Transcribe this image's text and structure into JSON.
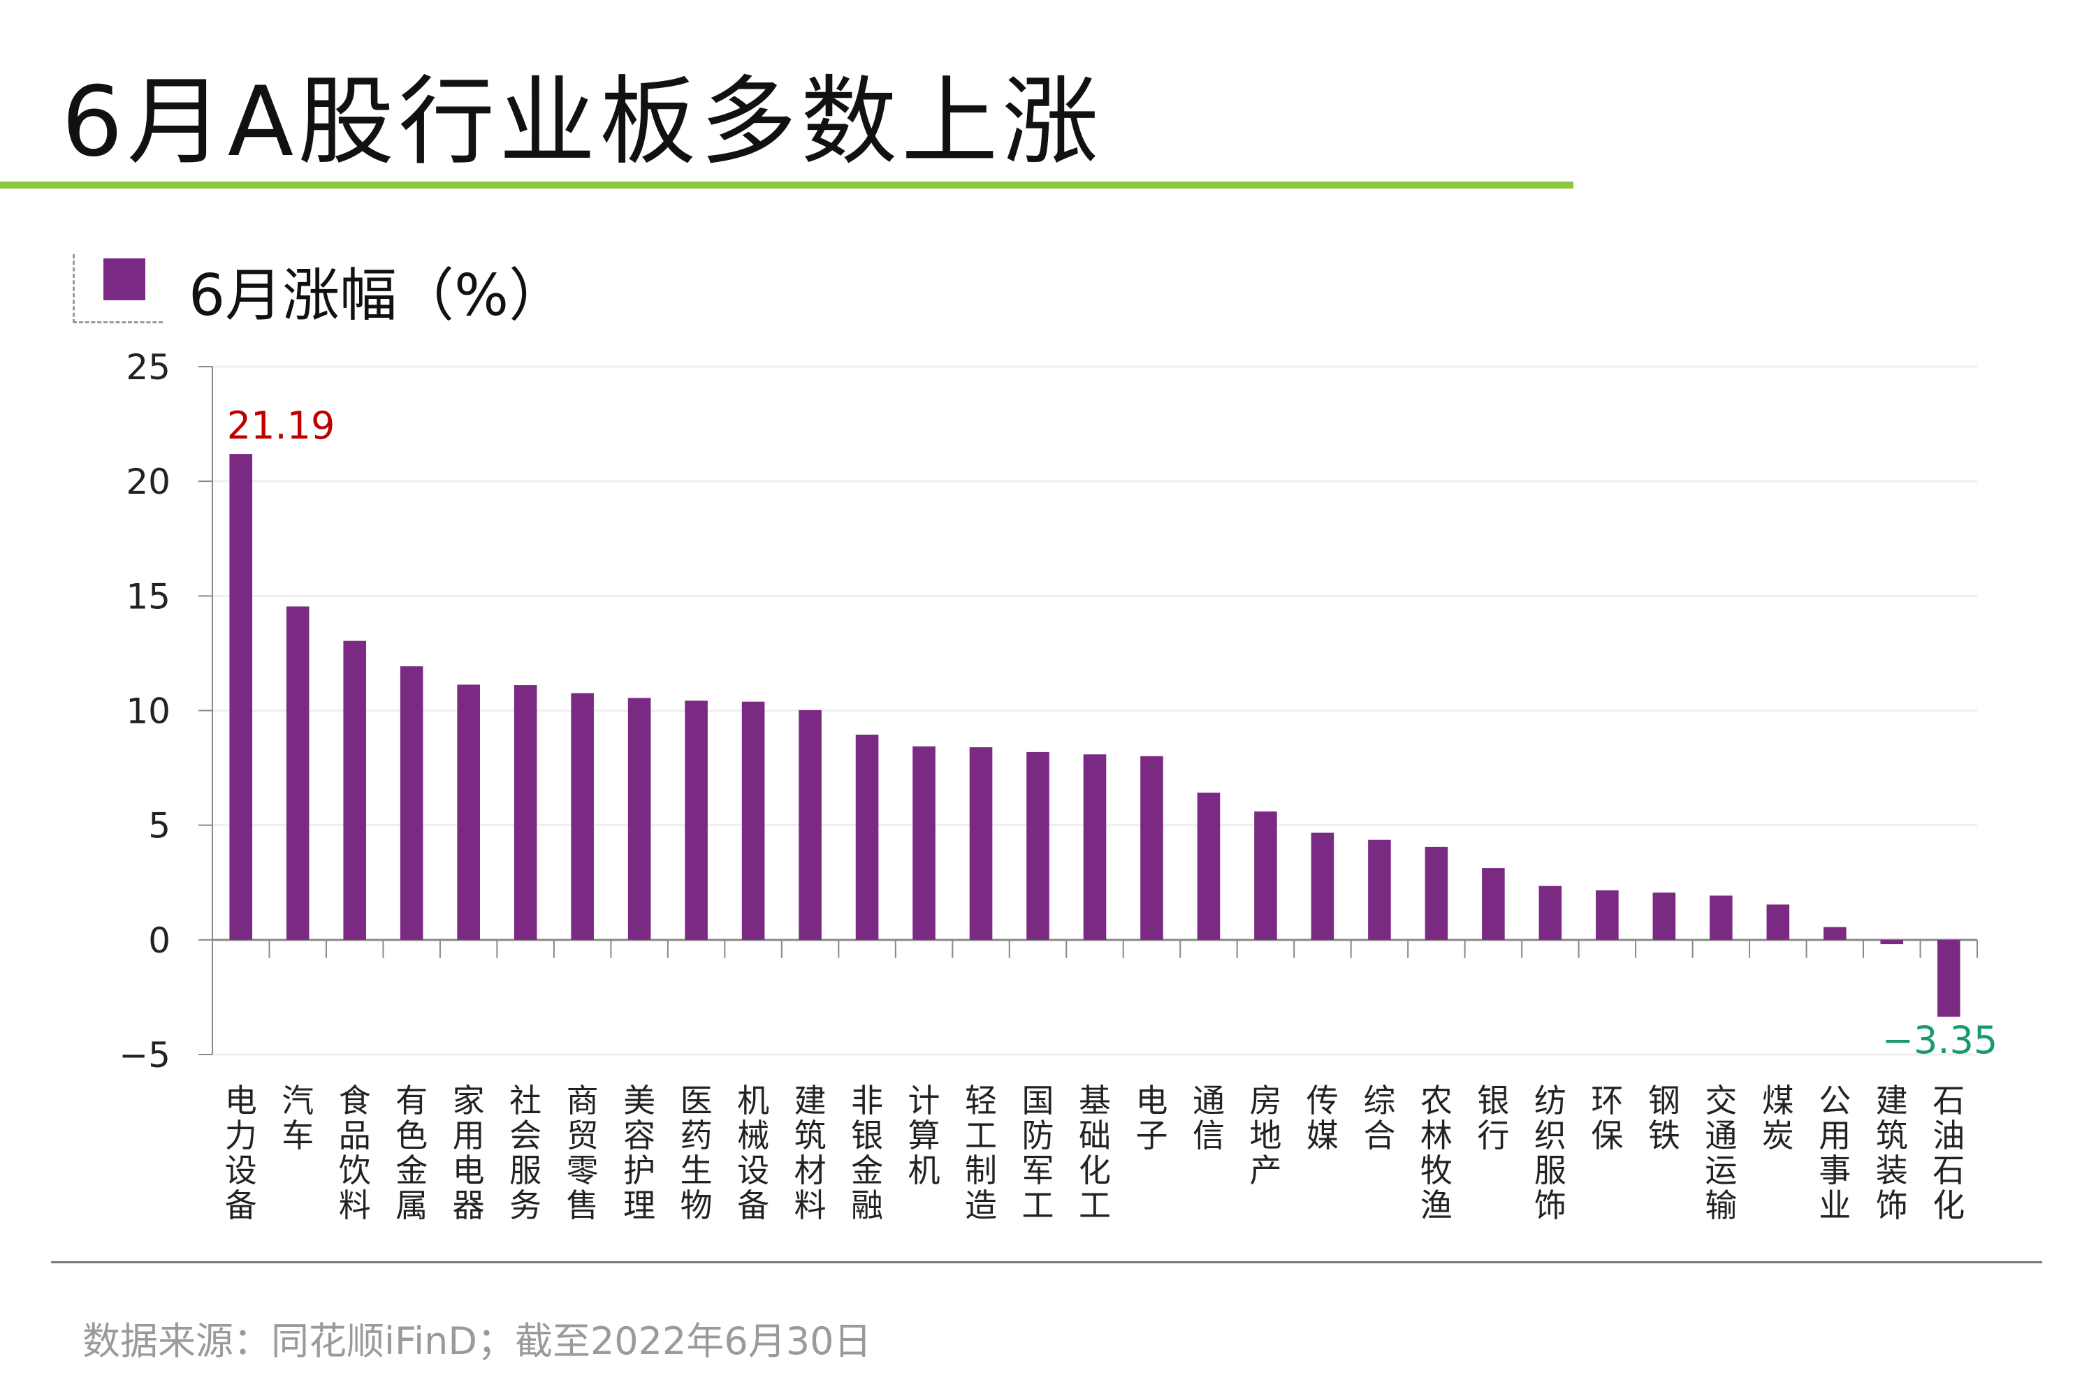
{
  "title": "6月A股行业板多数上涨",
  "source": "数据来源：同花顺iFinD；截至2022年6月30日",
  "colors": {
    "bar": "#7b2a84",
    "accent_rule": "#8cc63f",
    "max_label": "#c00000",
    "min_label": "#1a9a6a"
  },
  "chart_data": {
    "type": "bar",
    "title": "6月A股行业板多数上涨",
    "legend": [
      "6月涨幅（%）"
    ],
    "legend_placement": "top-left",
    "ylim": [
      -5,
      25
    ],
    "yticks": [
      25,
      20,
      15,
      10,
      5,
      0,
      -5
    ],
    "ytick_labels": [
      "25",
      "20",
      "15",
      "10",
      "5",
      "0",
      "−5"
    ],
    "grid": true,
    "categories": [
      "电力设备",
      "汽车",
      "食品饮料",
      "有色金属",
      "家用电器",
      "社会服务",
      "商贸零售",
      "美容护理",
      "医药生物",
      "机械设备",
      "建筑材料",
      "非银金融",
      "计算机",
      "轻工制造",
      "国防军工",
      "基础化工",
      "电子",
      "通信",
      "房地产",
      "传媒",
      "综合",
      "农林牧渔",
      "银行",
      "纺织服饰",
      "环保",
      "钢铁",
      "交通运输",
      "煤炭",
      "公用事业",
      "建筑装饰",
      "石油石化"
    ],
    "series": [
      {
        "name": "6月涨幅（%）",
        "values": [
          21.19,
          14.54,
          13.04,
          11.93,
          11.13,
          11.11,
          10.76,
          10.55,
          10.43,
          10.39,
          10.02,
          8.95,
          8.44,
          8.4,
          8.19,
          8.09,
          8.01,
          6.42,
          5.6,
          4.67,
          4.36,
          4.05,
          3.13,
          2.35,
          2.16,
          2.06,
          1.93,
          1.54,
          0.56,
          -0.19,
          -3.35
        ]
      }
    ],
    "data_labels": [
      {
        "category": "电力设备",
        "text": "21.19"
      },
      {
        "category": "石油石化",
        "text": "−3.35"
      }
    ]
  }
}
